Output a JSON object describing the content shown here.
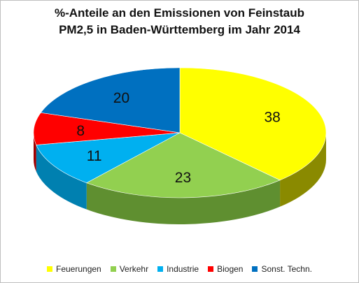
{
  "chart_data": {
    "type": "pie",
    "title_line1": "%-Anteile an den Emissionen von Feinstaub",
    "title_line2": "PM2,5 in Baden-Württemberg im Jahr 2014",
    "slices": [
      {
        "name": "Feuerungen",
        "value": 38,
        "color": "#ffff00",
        "side": "#8a8a00"
      },
      {
        "name": "Verkehr",
        "value": 23,
        "color": "#92d050",
        "side": "#5f8f30"
      },
      {
        "name": "Industrie",
        "value": 11,
        "color": "#00b0f0",
        "side": "#0080b0"
      },
      {
        "name": "Biogen",
        "value": 8,
        "color": "#ff0000",
        "side": "#a00000"
      },
      {
        "name": "Sonst. Techn.",
        "value": 20,
        "color": "#0070c0",
        "side": "#004a80"
      }
    ],
    "legend_position": "bottom",
    "style": "3d-pie"
  }
}
